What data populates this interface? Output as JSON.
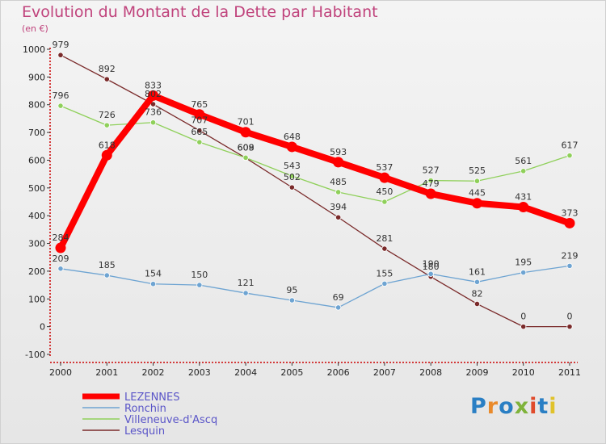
{
  "title": "Evolution du Montant de la Dette par Habitant",
  "unit_label": "(en €)",
  "logo_text": "Proxiti",
  "chart_data": {
    "type": "line",
    "x": [
      "2000",
      "2001",
      "2002",
      "2003",
      "2004",
      "2005",
      "2006",
      "2007",
      "2008",
      "2009",
      "2010",
      "2011"
    ],
    "ylim": [
      -100,
      1000
    ],
    "yticks": [
      "-100",
      "0",
      "100",
      "200",
      "300",
      "400",
      "500",
      "600",
      "700",
      "800",
      "900",
      "1000"
    ],
    "grid": false,
    "legend_position": "bottom-left",
    "series": [
      {
        "name": "LEZENNES",
        "color": "#ff0000",
        "values": [
          284,
          618,
          833,
          765,
          701,
          648,
          593,
          537,
          479,
          445,
          431,
          373
        ]
      },
      {
        "name": "Ronchin",
        "color": "#6ea4d2",
        "values": [
          209,
          185,
          154,
          150,
          121,
          95,
          69,
          155,
          190,
          161,
          195,
          219
        ]
      },
      {
        "name": "Villeneuve-d'Ascq",
        "color": "#8fd05a",
        "values": [
          796,
          726,
          736,
          665,
          609,
          543,
          485,
          450,
          527,
          525,
          561,
          617
        ]
      },
      {
        "name": "Lesquin",
        "color": "#7a2a2a",
        "values": [
          979,
          892,
          802,
          707,
          608,
          502,
          394,
          281,
          180,
          82,
          0,
          0
        ]
      }
    ]
  }
}
